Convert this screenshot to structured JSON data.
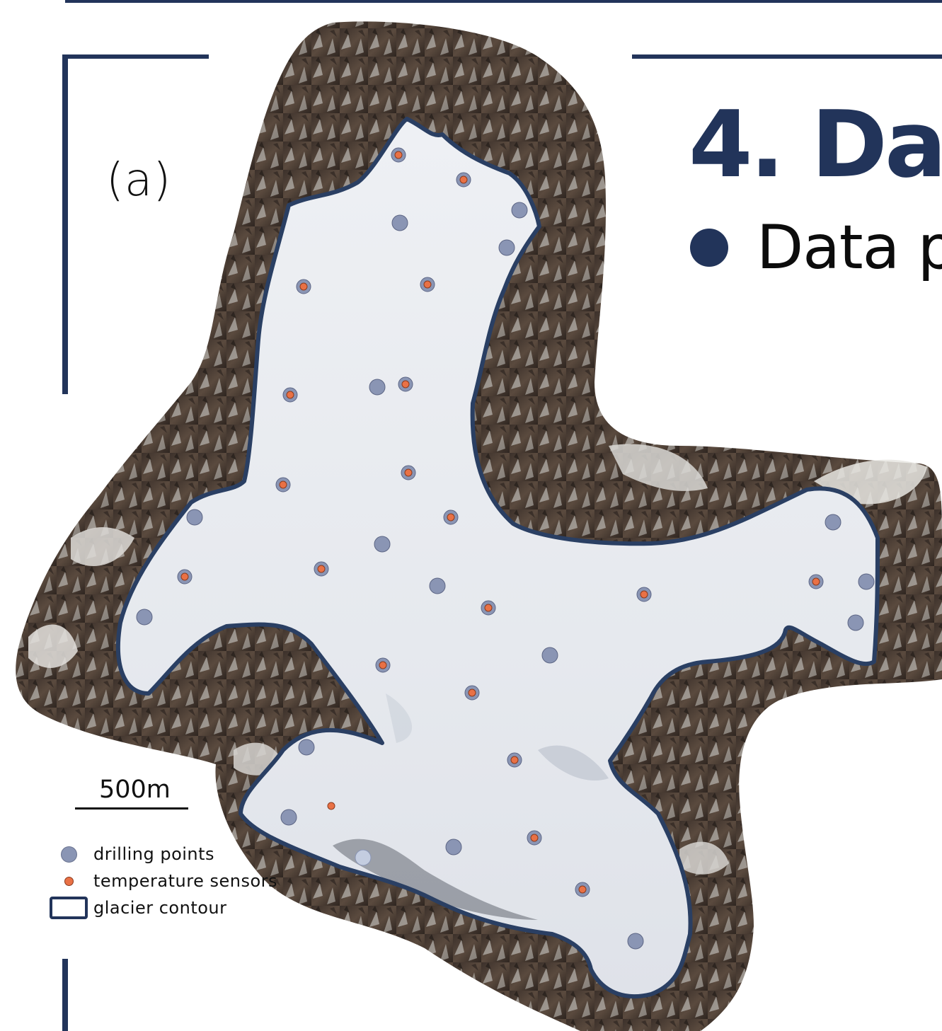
{
  "panel_label": "(a)",
  "heading": "4. Dat",
  "bullet_text": "Data p",
  "scale_bar": "500m",
  "legend": {
    "drilling": "drilling points",
    "temperature": "temperature sensors",
    "contour": "glacier contour"
  },
  "colors": {
    "frame": "#22345a",
    "contour": "#2a3f63",
    "drilling_fill": "#8a95b4",
    "sensor_fill": "#e97145",
    "ice": "#e9ecf1",
    "rock": "#4b3d34"
  }
}
